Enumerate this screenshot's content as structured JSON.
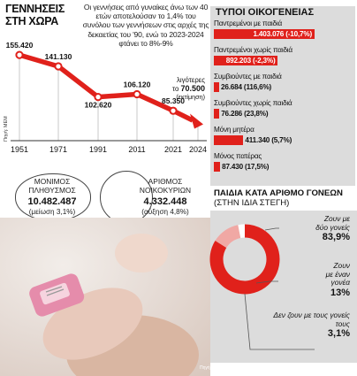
{
  "births": {
    "title": "ΓΕΝΝΗΣΕΙΣ ΣΤΗ ΧΩΡΑ",
    "note": "Οι γεννήσεις από γυναίκες άνω των 40 ετών αποτελούσαν το 1,4% του συνόλου των γεννήσεων στις αρχές της δεκαετίας του '90, ενώ το 2023-2024 φτάνει το 8%-9%",
    "source": "Πηγή: ΜΕΜ",
    "annotation": [
      "λιγότερες",
      "το",
      "70.500",
      "(εκτίμηση)"
    ],
    "color": "#e0211b"
  },
  "chart_data": [
    {
      "type": "line",
      "title": "ΓΕΝΝΗΣΕΙΣ ΣΤΗ ΧΩΡΑ",
      "categories": [
        "1951",
        "1971",
        "1991",
        "2011",
        "2021",
        "2024"
      ],
      "values": [
        155420,
        141130,
        102620,
        106120,
        85350,
        70500
      ],
      "value_labels": [
        "155.420",
        "141.130",
        "102.620",
        "106.120",
        "85.350",
        "70.500"
      ],
      "grid": false
    },
    {
      "type": "bar",
      "title": "ΤΥΠΟΙ ΟΙΚΟΓΕΝΕΙΑΣ",
      "categories": [
        "Παντρεμένοι με παιδιά",
        "Παντρεμένοι χωρίς παιδιά",
        "Συμβιούντες με παιδιά",
        "Συμβιούντες χωρίς παιδιά",
        "Μόνη μητέρα",
        "Μόνος πατέρας"
      ],
      "values": [
        1403076,
        892203,
        26684,
        76286,
        411340,
        87430
      ],
      "value_labels": [
        "1.403.076 (-10,7%)",
        "892.203 (-2,3%)",
        "26.684 (116,6%)",
        "76.286 (23,8%)",
        "411.340 (5,7%)",
        "87.430 (17,5%)"
      ]
    },
    {
      "type": "pie",
      "title": "ΠΑΙΔΙΑ ΚΑΤΑ ΑΡΙΘΜΟ ΓΟΝΕΩΝ",
      "subtitle": "(ΣΤΗΝ ΙΔΙΑ ΣΤΕΓΗ)",
      "categories": [
        "Ζουν με δύο γονείς",
        "Ζουν με έναν γονέα",
        "Δεν ζουν με τους γονείς τους"
      ],
      "values": [
        83.9,
        13,
        3.1
      ],
      "value_labels": [
        "83,9%",
        "13%",
        "3,1%"
      ]
    }
  ],
  "population": {
    "label": [
      "ΜΟΝΙΜΟΣ",
      "ΠΛΗΘΥΣΜΟΣ"
    ],
    "value": "10.482.487",
    "change": "(μείωση 3,1%)"
  },
  "households": {
    "label": [
      "ΑΡΙΘΜΟΣ",
      "ΝΟΙΚΟΚΥΡΙΩΝ"
    ],
    "value": "4.332.448",
    "change": "(αύξηση 4,8%)"
  },
  "photo": {
    "credit": "Πηγή"
  },
  "colors": {
    "red": "#e0211b",
    "panel": "#dcdcdc",
    "light_red": "#f0a8a4"
  }
}
